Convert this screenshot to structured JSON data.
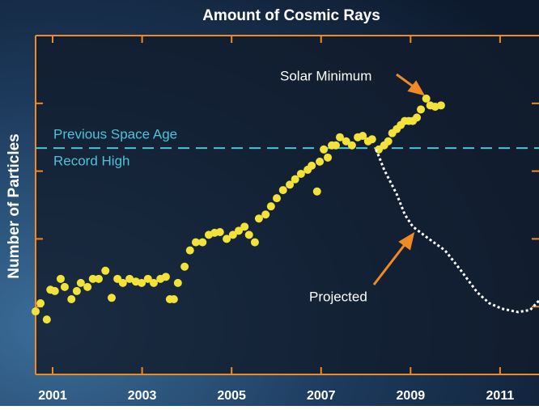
{
  "chart_data": {
    "type": "scatter",
    "title": "Amount of Cosmic Rays",
    "y_label": "Number of Particles",
    "xlim": [
      2000.62,
      2011.87
    ],
    "ylim": [
      0,
      5
    ],
    "xticks": [
      2001,
      2003,
      2005,
      2007,
      2009,
      2011
    ],
    "yticks": [
      1,
      2,
      3,
      4
    ],
    "reference_line": {
      "value": 3.34,
      "color": "#4cc3d9",
      "label_lines": [
        "Previous Space Age",
        "Record High"
      ]
    },
    "annotations": [
      "Solar Minimum",
      "Projected"
    ],
    "series": [
      {
        "color": "#f3e23a",
        "style": "dots",
        "x": [
          2000.62,
          2000.73,
          2000.87,
          2000.95,
          2001.05,
          2001.18,
          2001.27,
          2001.42,
          2001.54,
          2001.63,
          2001.78,
          2001.9,
          2002.03,
          2002.18,
          2002.32,
          2002.45,
          2002.57,
          2002.72,
          2002.86,
          2002.99,
          2003.13,
          2003.26,
          2003.41,
          2003.53,
          2003.62,
          2003.71,
          2003.8,
          2003.95,
          2004.07,
          2004.2,
          2004.35,
          2004.49,
          2004.62,
          2004.74,
          2004.89,
          2005.03,
          2005.16,
          2005.29,
          2005.39,
          2005.52,
          2005.61,
          2005.76,
          2005.88,
          2006.01,
          2006.15,
          2006.3,
          2006.42,
          2006.55,
          2006.7,
          2006.79,
          2006.91,
          2006.97,
          2007.06,
          2007.15,
          2007.24,
          2007.33,
          2007.42,
          2007.56,
          2007.69,
          2007.82,
          2007.93,
          2008.05,
          2008.14,
          2008.29,
          2008.41,
          2008.5,
          2008.59,
          2008.69,
          2008.78,
          2008.87,
          2008.96,
          2009.05,
          2009.14,
          2009.23,
          2009.35,
          2009.44,
          2009.55,
          2009.68
        ],
        "values": [
          0.93,
          1.05,
          0.81,
          1.25,
          1.23,
          1.41,
          1.29,
          1.11,
          1.23,
          1.35,
          1.29,
          1.41,
          1.41,
          1.53,
          1.13,
          1.41,
          1.35,
          1.41,
          1.37,
          1.35,
          1.41,
          1.35,
          1.41,
          1.44,
          1.11,
          1.11,
          1.35,
          1.59,
          1.83,
          1.95,
          1.95,
          2.06,
          2.09,
          2.1,
          2.0,
          2.06,
          2.12,
          2.18,
          2.06,
          1.95,
          2.3,
          2.36,
          2.48,
          2.6,
          2.72,
          2.8,
          2.88,
          2.96,
          3.02,
          3.08,
          2.7,
          3.14,
          3.32,
          3.2,
          3.38,
          3.38,
          3.5,
          3.44,
          3.38,
          3.5,
          3.52,
          3.44,
          3.47,
          3.32,
          3.38,
          3.44,
          3.56,
          3.62,
          3.68,
          3.74,
          3.74,
          3.74,
          3.79,
          3.91,
          4.07,
          3.97,
          3.95,
          3.97
        ]
      },
      {
        "color": "#ffffff",
        "style": "dotted-line",
        "x": [
          2008.23,
          2008.41,
          2008.69,
          2008.87,
          2009.05,
          2009.41,
          2009.77,
          2010.13,
          2010.49,
          2010.76,
          2011.04,
          2011.4,
          2011.67,
          2011.87
        ],
        "values": [
          3.32,
          3.02,
          2.66,
          2.36,
          2.18,
          2.0,
          1.83,
          1.53,
          1.21,
          1.05,
          0.97,
          0.92,
          0.95,
          1.09
        ]
      }
    ]
  }
}
